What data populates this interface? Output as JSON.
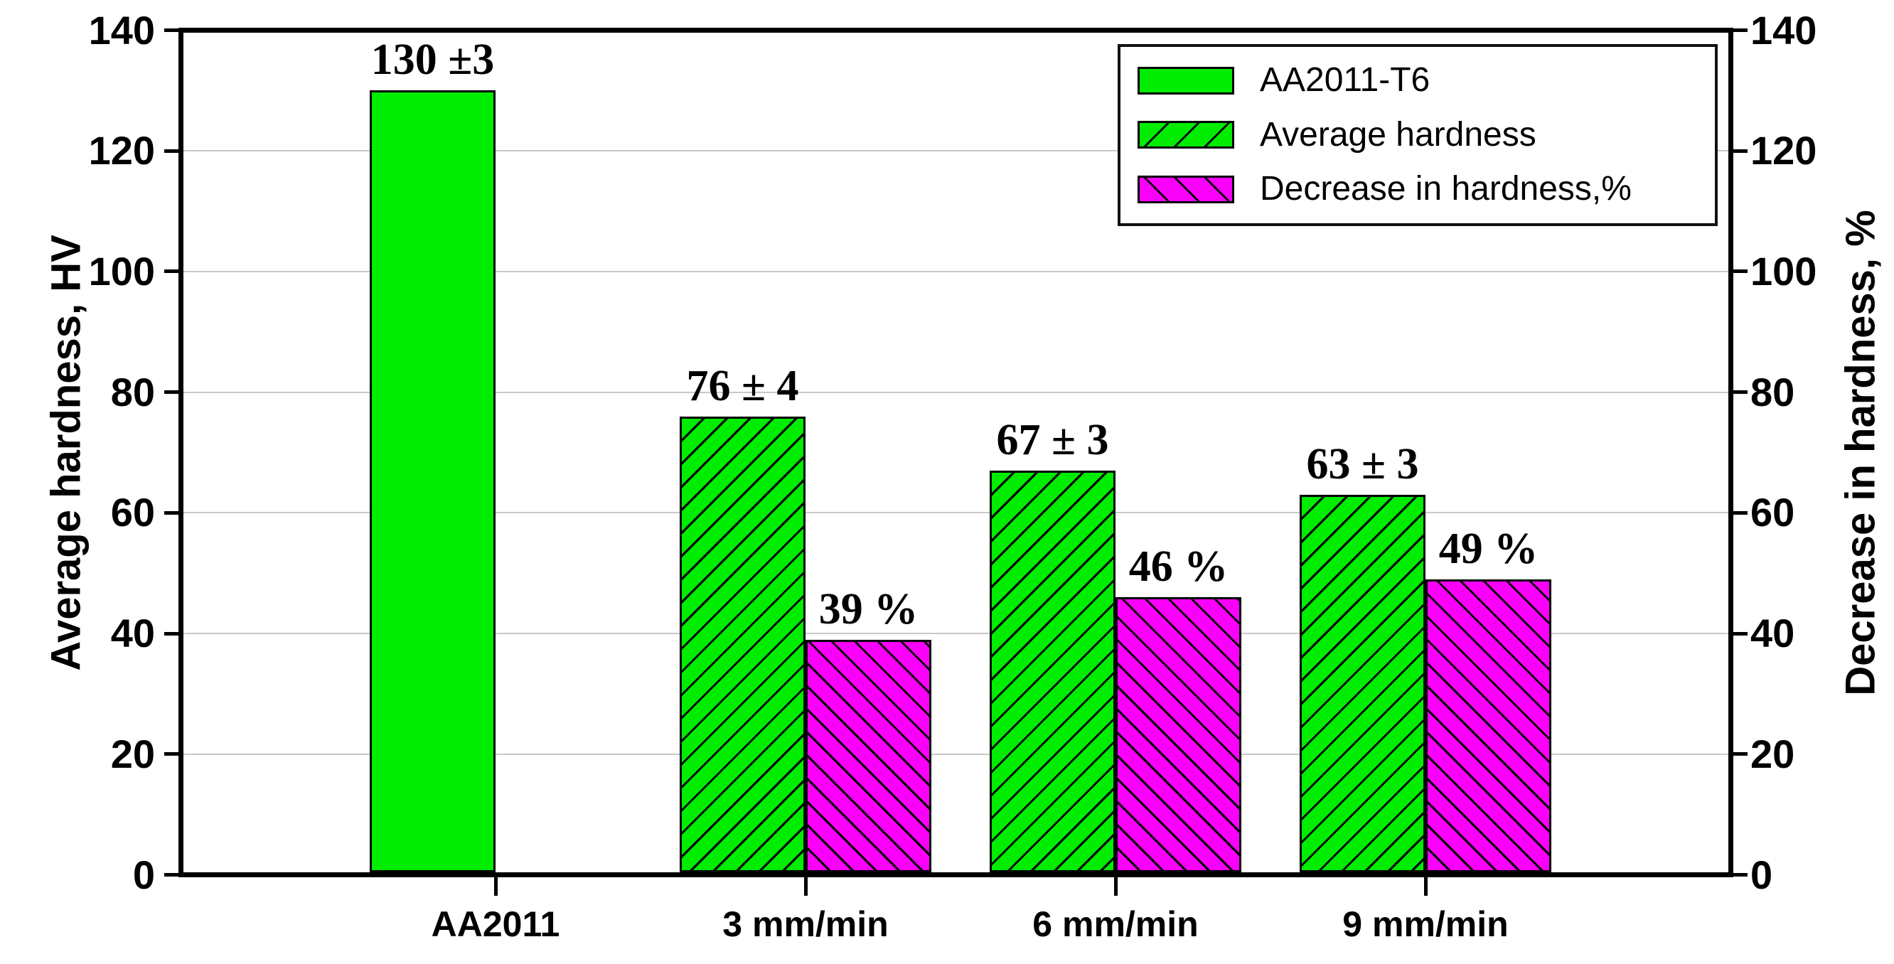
{
  "chart_data": {
    "type": "bar",
    "title": "",
    "axes": {
      "left": {
        "title": "Average hardness, HV",
        "range": [
          0,
          140
        ],
        "ticks": [
          0,
          20,
          40,
          60,
          80,
          100,
          120,
          140
        ]
      },
      "right": {
        "title": "Decrease in hardness, %",
        "range": [
          0,
          140
        ],
        "ticks": [
          0,
          20,
          40,
          60,
          80,
          100,
          120,
          140
        ]
      },
      "bottom": {
        "categories": [
          "AA2011",
          "3 mm/min",
          "6 mm/min",
          "9 mm/min"
        ]
      }
    },
    "grid": {
      "on": true,
      "values": [
        20,
        40,
        60,
        80,
        100,
        120
      ]
    },
    "groups": [
      {
        "category": "AA2011",
        "bars": [
          {
            "series": "AA2011-T6",
            "value": 130,
            "label": "130 ±3",
            "style": "solid-green",
            "side": "left"
          }
        ]
      },
      {
        "category": "3 mm/min",
        "bars": [
          {
            "series": "Average hardness",
            "value": 76,
            "label": "76 ± 4",
            "style": "hatch-green",
            "side": "left"
          },
          {
            "series": "Decrease in hardness,%",
            "value": 39,
            "label": "39 %",
            "style": "hatch-magenta",
            "side": "right"
          }
        ]
      },
      {
        "category": "6 mm/min",
        "bars": [
          {
            "series": "Average hardness",
            "value": 67,
            "label": "67 ± 3",
            "style": "hatch-green",
            "side": "left"
          },
          {
            "series": "Decrease in hardness,%",
            "value": 46,
            "label": "46 %",
            "style": "hatch-magenta",
            "side": "right"
          }
        ]
      },
      {
        "category": "9 mm/min",
        "bars": [
          {
            "series": "Average hardness",
            "value": 63,
            "label": "63 ± 3",
            "style": "hatch-green",
            "side": "left"
          },
          {
            "series": "Decrease in hardness,%",
            "value": 49,
            "label": "49 %",
            "style": "hatch-magenta",
            "side": "right"
          }
        ]
      }
    ],
    "legend": {
      "position": "top-right",
      "items": [
        {
          "label": "AA2011-T6",
          "style": "solid-green"
        },
        {
          "label": "Average hardness",
          "style": "hatch-green"
        },
        {
          "label": "Decrease in hardness,%",
          "style": "hatch-magenta"
        }
      ]
    },
    "colors": {
      "green": "#00EC00",
      "magenta": "#FA00FA",
      "gridline": "#c8c8c8",
      "axis": "#000000",
      "background": "#ffffff"
    }
  }
}
